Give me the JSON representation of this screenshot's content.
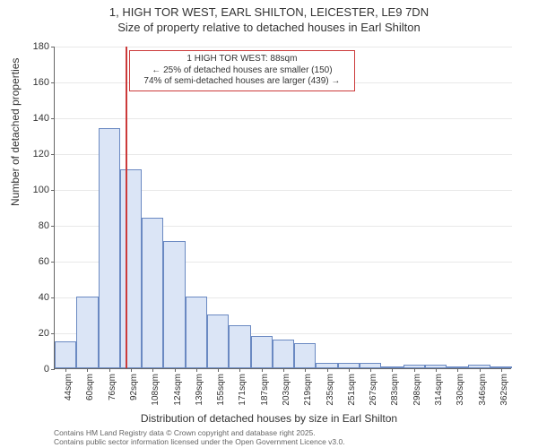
{
  "title": {
    "line1": "1, HIGH TOR WEST, EARL SHILTON, LEICESTER, LE9 7DN",
    "line2": "Size of property relative to detached houses in Earl Shilton"
  },
  "chart": {
    "type": "histogram",
    "ylabel": "Number of detached properties",
    "xlabel": "Distribution of detached houses by size in Earl Shilton",
    "ylim": [
      0,
      180
    ],
    "ytick_step": 20,
    "bar_fill": "#dbe5f6",
    "bar_stroke": "#6a89c2",
    "grid_color": "#e8e8e8",
    "axis_color": "#666666",
    "background_color": "#ffffff",
    "marker_line_color": "#cc3a3a",
    "marker_line_x": 88,
    "x_start": 36,
    "x_step": 16,
    "bins": [
      {
        "label": "44sqm",
        "value": 15
      },
      {
        "label": "60sqm",
        "value": 40
      },
      {
        "label": "76sqm",
        "value": 134
      },
      {
        "label": "92sqm",
        "value": 111
      },
      {
        "label": "108sqm",
        "value": 84
      },
      {
        "label": "124sqm",
        "value": 71
      },
      {
        "label": "139sqm",
        "value": 40
      },
      {
        "label": "155sqm",
        "value": 30
      },
      {
        "label": "171sqm",
        "value": 24
      },
      {
        "label": "187sqm",
        "value": 18
      },
      {
        "label": "203sqm",
        "value": 16
      },
      {
        "label": "219sqm",
        "value": 14
      },
      {
        "label": "235sqm",
        "value": 3
      },
      {
        "label": "251sqm",
        "value": 3
      },
      {
        "label": "267sqm",
        "value": 3
      },
      {
        "label": "283sqm",
        "value": 1
      },
      {
        "label": "298sqm",
        "value": 2
      },
      {
        "label": "314sqm",
        "value": 2
      },
      {
        "label": "330sqm",
        "value": 0
      },
      {
        "label": "346sqm",
        "value": 2
      },
      {
        "label": "362sqm",
        "value": 1
      }
    ],
    "callout": {
      "line1": "1 HIGH TOR WEST: 88sqm",
      "line2": "← 25% of detached houses are smaller (150)",
      "line3": "74% of semi-detached houses are larger (439) →"
    }
  },
  "footer": {
    "line1": "Contains HM Land Registry data © Crown copyright and database right 2025.",
    "line2": "Contains public sector information licensed under the Open Government Licence v3.0."
  }
}
